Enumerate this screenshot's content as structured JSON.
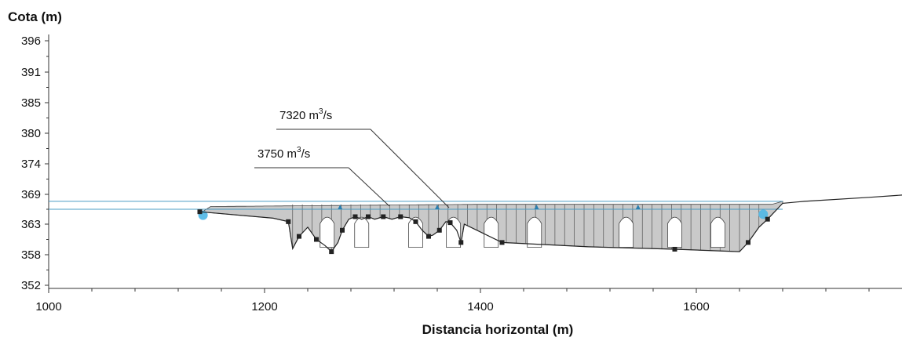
{
  "chart_data": {
    "type": "line",
    "title": "",
    "xlabel": "Distancia horizontal (m)",
    "ylabel": "Cota (m)",
    "xlim": [
      1000,
      1200,
      1400,
      1600
    ],
    "x_ticks": [
      1000,
      1200,
      1400,
      1600
    ],
    "y_ticks": [
      352,
      358,
      363,
      369,
      374,
      380,
      385,
      391,
      396
    ],
    "ylim": [
      352,
      396
    ],
    "grid": false,
    "series": [
      {
        "name": "7320 m³/s",
        "color": "#4a9cc4",
        "x": [
          1000,
          1680
        ],
        "y": [
          367.6,
          367.6
        ]
      },
      {
        "name": "3750 m³/s",
        "color": "#4a9cc4",
        "x": [
          1000,
          1680
        ],
        "y": [
          366.0,
          366.0
        ]
      },
      {
        "name": "",
        "color": "#222222",
        "x": [
          1140,
          1208,
          1222,
          1226,
          1232,
          1240,
          1248,
          1256,
          1262,
          1268,
          1272,
          1278,
          1284,
          1290,
          1296,
          1302,
          1310,
          1318,
          1326,
          1334,
          1340,
          1346,
          1352,
          1356,
          1362,
          1368,
          1372,
          1378,
          1382,
          1385,
          1420,
          1500,
          1580,
          1640,
          1648,
          1658,
          1666,
          1680,
          1700,
          1760,
          1800
        ],
        "y": [
          365.5,
          364.2,
          363.5,
          359.0,
          361.0,
          362.5,
          360.5,
          359.5,
          358.5,
          360.0,
          362.0,
          364.0,
          364.5,
          364.0,
          364.5,
          364.0,
          364.5,
          364.0,
          364.5,
          364.3,
          363.5,
          362.0,
          361.0,
          361.2,
          362.0,
          363.5,
          363.3,
          362.0,
          360.0,
          363.0,
          360.0,
          359.3,
          358.9,
          358.5,
          360.0,
          362.5,
          364.0,
          367.2,
          367.6,
          368.4,
          369.0
        ]
      }
    ],
    "annotations": [
      {
        "text": "7320 m",
        "sup": "3",
        "suffix": "/s"
      },
      {
        "text": "3750 m",
        "sup": "3",
        "suffix": "/s"
      }
    ]
  }
}
